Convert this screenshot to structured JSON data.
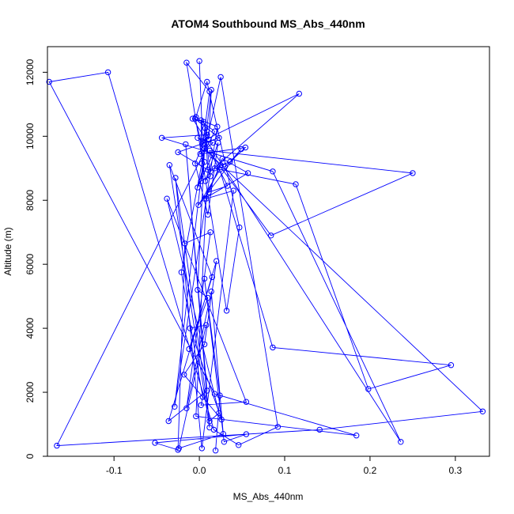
{
  "chart_data": {
    "type": "scatter",
    "mode": "lines+markers",
    "title": "ATOM4 Southbound MS_Abs_440nm",
    "xlabel": "MS_Abs_440nm",
    "ylabel": "Altitude (m)",
    "xlim": [
      -0.178,
      0.34
    ],
    "ylim": [
      0,
      12800
    ],
    "xticks": [
      -0.1,
      0.0,
      0.1,
      0.2,
      0.3
    ],
    "xtick_labels": [
      "-0.1",
      "0.0",
      "0.1",
      "0.2",
      "0.3"
    ],
    "yticks": [
      0,
      2000,
      4000,
      6000,
      8000,
      10000,
      12000
    ],
    "ytick_labels": [
      "0",
      "2000",
      "4000",
      "6000",
      "8000",
      "10000",
      "12000"
    ],
    "grid": false,
    "series_color": "#0000ff",
    "series": [
      {
        "x": [
          0.0,
          0.004,
          0.012,
          -0.015,
          0.032,
          0.047,
          0.009,
          -0.004,
          0.018,
          -0.167,
          0.141,
          0.332,
          0.004,
          -0.005,
          0.023,
          -0.025,
          0.01,
          0.007,
          0.013,
          0.002,
          0.006,
          -0.002,
          0.015,
          0.084,
          0.25,
          0.012,
          0.033,
          0.011,
          0.027,
          0.057,
          0.006,
          0.025,
          0.036,
          0.049,
          -0.001,
          0.024,
          0.086,
          0.295,
          0.198,
          0.113,
          0.018,
          0.03,
          0.054,
          0.001,
          0.016,
          -0.002,
          0.004,
          0.117,
          0.013,
          0.007,
          0.022,
          0.01,
          -0.005,
          0.009,
          -0.044,
          0.086,
          0.236,
          -0.008,
          0.005,
          0.011,
          0.014,
          -0.029,
          0.021,
          0.002,
          0.003,
          0.025,
          0.092,
          0.046,
          0.017,
          -0.107,
          -0.176,
          0.018,
          0.184,
          -0.004,
          0.008,
          0.04,
          0.003,
          -0.028,
          0.012,
          0.023,
          -0.038,
          0.055,
          0.002,
          0.004,
          -0.021,
          0.006,
          -0.002,
          0.01,
          -0.012,
          0.015,
          -0.035,
          0.012,
          -0.016,
          0.009,
          -0.036,
          0.02,
          0.006,
          -0.018,
          0.026,
          -0.011,
          0.008,
          -0.024,
          0.028,
          0.014,
          -0.015,
          0.013,
          -0.017,
          -0.025,
          -0.052,
          0.055,
          0.029,
          0.006,
          0.024,
          0.019
        ],
        "y": [
          12350,
          9750,
          11400,
          12300,
          4550,
          7150,
          11700,
          10600,
          10150,
          330,
          830,
          1400,
          9650,
          10550,
          9950,
          9500,
          8950,
          10250,
          8750,
          8600,
          9200,
          8400,
          9400,
          6900,
          8850,
          9550,
          8450,
          8250,
          9300,
          8850,
          8050,
          9100,
          9200,
          9600,
          7850,
          8950,
          3400,
          2850,
          2100,
          8500,
          9000,
          9050,
          9650,
          9450,
          9800,
          9950,
          9850,
          11330,
          8900,
          8600,
          9800,
          7550,
          9150,
          10050,
          9950,
          8900,
          450,
          10550,
          10450,
          9900,
          11450,
          1550,
          10300,
          10500,
          9150,
          11850,
          920,
          350,
          830,
          12000,
          11700,
          1950,
          650,
          1250,
          8050,
          8300,
          250,
          8700,
          1100,
          1350,
          8050,
          1700,
          1600,
          1850,
          5750,
          9600,
          5200,
          4950,
          3350,
          5600,
          9100,
          900,
          9750,
          2050,
          1100,
          6100,
          3500,
          2550,
          1150,
          4000,
          4100,
          250,
          700,
          5150,
          1500,
          7000,
          6650,
          200,
          420,
          690,
          450,
          5550,
          1900,
          180
        ]
      }
    ]
  }
}
